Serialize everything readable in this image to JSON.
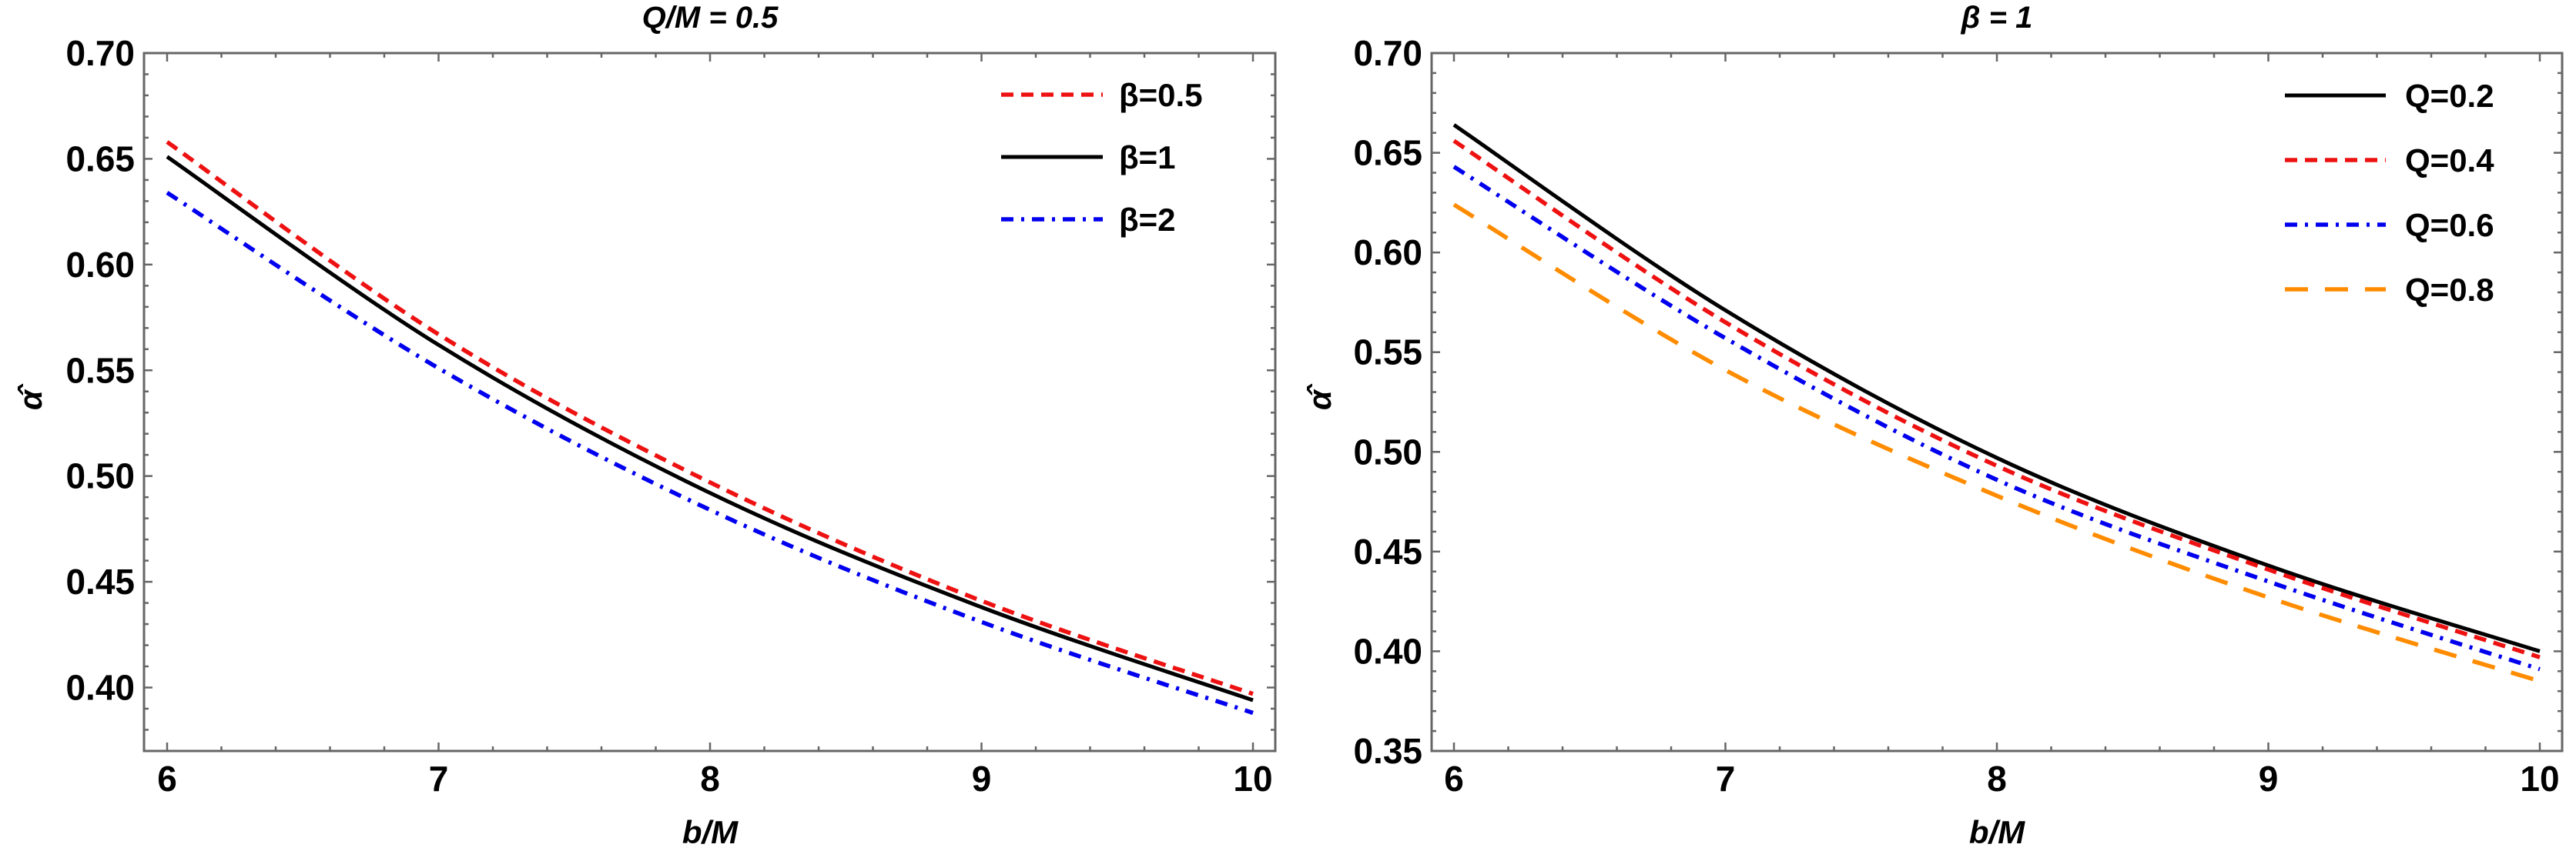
{
  "chart_data": [
    {
      "type": "line",
      "title": "Q/M = 0.5",
      "xlabel": "b/M",
      "ylabel": "α̂",
      "xlim": [
        6,
        10
      ],
      "ylim": [
        0.37,
        0.7
      ],
      "xticks": [
        6,
        7,
        8,
        9,
        10
      ],
      "xtick_labels": [
        "6",
        "7",
        "8",
        "9",
        "10"
      ],
      "yticks": [
        0.4,
        0.45,
        0.5,
        0.55,
        0.6,
        0.65,
        0.7
      ],
      "ytick_labels": [
        "0.40",
        "0.45",
        "0.50",
        "0.55",
        "0.60",
        "0.65",
        "0.70"
      ],
      "grid": false,
      "legend_position": "top-right",
      "x": [
        6,
        7,
        8,
        9,
        10
      ],
      "series": [
        {
          "name": "β=0.5",
          "color": "#ee1111",
          "style": "dashed",
          "values": [
            0.658,
            0.567,
            0.497,
            0.441,
            0.397
          ]
        },
        {
          "name": "β=1",
          "color": "#000000",
          "style": "solid",
          "values": [
            0.651,
            0.562,
            0.492,
            0.438,
            0.394
          ]
        },
        {
          "name": "β=2",
          "color": "#0000ee",
          "style": "dashdot",
          "values": [
            0.634,
            0.551,
            0.484,
            0.431,
            0.388
          ]
        }
      ]
    },
    {
      "type": "line",
      "title": "β = 1",
      "xlabel": "b/M",
      "ylabel": "α̂",
      "xlim": [
        6,
        10
      ],
      "ylim": [
        0.35,
        0.7
      ],
      "xticks": [
        6,
        7,
        8,
        9,
        10
      ],
      "xtick_labels": [
        "6",
        "7",
        "8",
        "9",
        "10"
      ],
      "yticks": [
        0.35,
        0.4,
        0.45,
        0.5,
        0.55,
        0.6,
        0.65,
        0.7
      ],
      "ytick_labels": [
        "0.35",
        "0.40",
        "0.45",
        "0.50",
        "0.55",
        "0.60",
        "0.65",
        "0.70"
      ],
      "grid": false,
      "legend_position": "top-right",
      "x": [
        6,
        7,
        8,
        9,
        10
      ],
      "series": [
        {
          "name": "Q=0.2",
          "color": "#000000",
          "style": "solid",
          "values": [
            0.664,
            0.571,
            0.497,
            0.443,
            0.4
          ]
        },
        {
          "name": "Q=0.4",
          "color": "#ee1111",
          "style": "dashed",
          "values": [
            0.656,
            0.565,
            0.493,
            0.441,
            0.397
          ]
        },
        {
          "name": "Q=0.6",
          "color": "#0000ee",
          "style": "dashdot",
          "values": [
            0.643,
            0.557,
            0.486,
            0.435,
            0.391
          ]
        },
        {
          "name": "Q=0.8",
          "color": "#ff8c00",
          "style": "longdash",
          "values": [
            0.624,
            0.541,
            0.478,
            0.427,
            0.385
          ]
        }
      ]
    }
  ]
}
